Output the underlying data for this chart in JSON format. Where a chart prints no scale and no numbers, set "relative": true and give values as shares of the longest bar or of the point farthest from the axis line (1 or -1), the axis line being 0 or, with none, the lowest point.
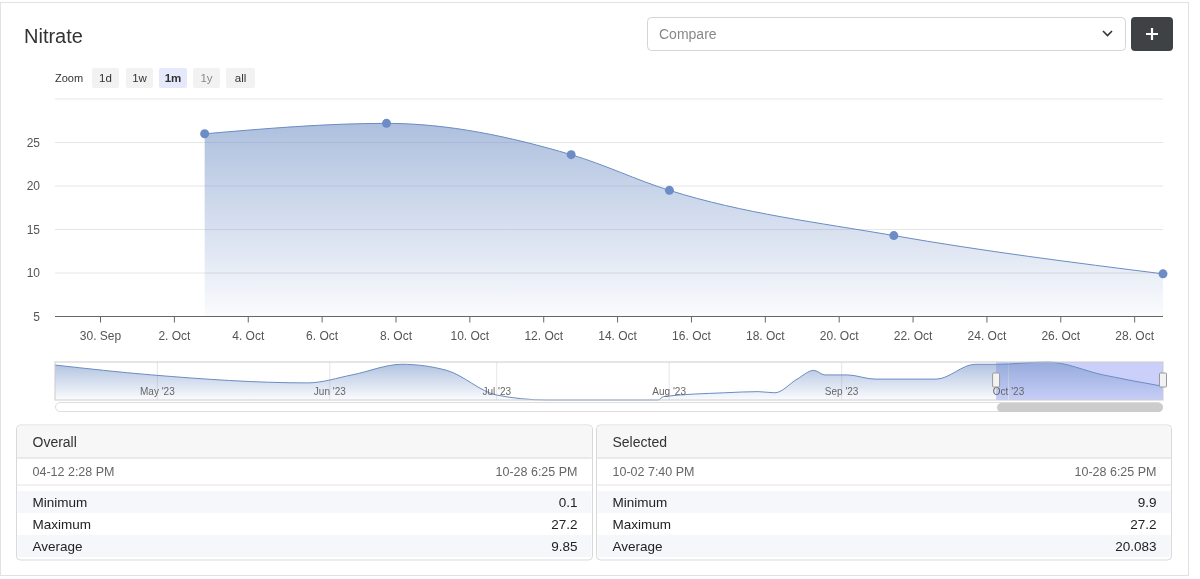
{
  "chart_data": [
    {
      "type": "area",
      "title": "Nitrate",
      "annotations": [
        "Compare",
        "Zoom",
        "1d",
        "1w",
        "1m",
        "1y",
        "all"
      ],
      "x": [
        "2023-10-02T19:40",
        "2023-10-07T17:50",
        "2023-10-12T17:50",
        "2023-10-15T09:40",
        "2023-10-21T11:30",
        "2023-10-28T18:25"
      ],
      "series": [
        {
          "color": "#6b8cc4",
          "values": [
            26.0,
            27.2,
            23.6,
            19.5,
            14.3,
            9.9
          ]
        }
      ],
      "xlim": [
        "2023-09-28T18:25",
        "2023-10-28T18:25"
      ],
      "xticks": [
        {
          "value": "2023-09-30",
          "label": "30. Sep"
        },
        {
          "value": "2023-10-02",
          "label": "2. Oct"
        },
        {
          "value": "2023-10-04",
          "label": "4. Oct"
        },
        {
          "value": "2023-10-06",
          "label": "6. Oct"
        },
        {
          "value": "2023-10-08",
          "label": "8. Oct"
        },
        {
          "value": "2023-10-10",
          "label": "10. Oct"
        },
        {
          "value": "2023-10-12",
          "label": "12. Oct"
        },
        {
          "value": "2023-10-14",
          "label": "14. Oct"
        },
        {
          "value": "2023-10-16",
          "label": "16. Oct"
        },
        {
          "value": "2023-10-18",
          "label": "18. Oct"
        },
        {
          "value": "2023-10-20",
          "label": "20. Oct"
        },
        {
          "value": "2023-10-22",
          "label": "22. Oct"
        },
        {
          "value": "2023-10-24",
          "label": "24. Oct"
        },
        {
          "value": "2023-10-26",
          "label": "26. Oct"
        },
        {
          "value": "2023-10-28",
          "label": "28. Oct"
        }
      ],
      "ylim": [
        5,
        30
      ],
      "yticks": [
        5,
        10,
        15,
        20,
        25,
        {
          "value": 30,
          "label": null
        }
      ],
      "grid": "y",
      "marker": "circle"
    },
    {
      "type": "area",
      "relative": true,
      "x": [
        "2023-04-12T14:28",
        "2023-04-30",
        "2023-05-28",
        "2023-06-05",
        "2023-06-14",
        "2023-06-22",
        "2023-07-01",
        "2023-07-10",
        "2023-07-30",
        "2023-07-31",
        "2023-08-11",
        "2023-08-17",
        "2023-08-20",
        "2023-08-24",
        "2023-08-27",
        "2023-08-29",
        "2023-09-02",
        "2023-09-07",
        "2023-09-18",
        "2023-09-25",
        "2023-09-29",
        "2023-10-08",
        "2023-10-18",
        "2023-10-28T18:25"
      ],
      "series": [
        {
          "color": "#6b8cc4",
          "values": [
            0.92,
            0.66,
            0.45,
            0.66,
            0.94,
            0.78,
            0.13,
            0,
            0,
            0.09,
            0.19,
            0.22,
            0.19,
            0.55,
            0.78,
            0.66,
            0.66,
            0.55,
            0.55,
            0.94,
            0.94,
            1,
            0.66,
            0.36
          ]
        }
      ],
      "xlim": [
        "2023-04-12T14:28",
        "2023-10-28T18:25"
      ],
      "xticks": [
        {
          "value": "2023-05-01",
          "label": "May '23"
        },
        {
          "value": "2023-06-01",
          "label": "Jun '23"
        },
        {
          "value": "2023-07-01",
          "label": "Jul '23"
        },
        {
          "value": "2023-08-01",
          "label": "Aug '23"
        },
        {
          "value": "2023-09-01",
          "label": "Sep '23"
        },
        {
          "value": "2023-10-01",
          "label": "Oct '23"
        }
      ],
      "grid": "x",
      "bands": [
        {
          "axis": "x",
          "from": "2023-09-28T18:25",
          "to": "2023-10-28T18:25",
          "color": "#6677ee"
        }
      ]
    },
    {
      "type": "other",
      "title": "Overall",
      "annotations": [
        "04-12 2:28 PM",
        "10-28 6:25 PM"
      ],
      "categories": [
        "Minimum",
        "Maximum",
        "Average"
      ],
      "values": [
        0.1,
        27.2,
        9.85
      ],
      "data_labels": true
    },
    {
      "type": "other",
      "title": "Selected",
      "annotations": [
        "10-02 7:40 PM",
        "10-28 6:25 PM"
      ],
      "categories": [
        "Minimum",
        "Maximum",
        "Average"
      ],
      "values": [
        9.9,
        27.2,
        20.083
      ],
      "data_labels": true
    }
  ]
}
